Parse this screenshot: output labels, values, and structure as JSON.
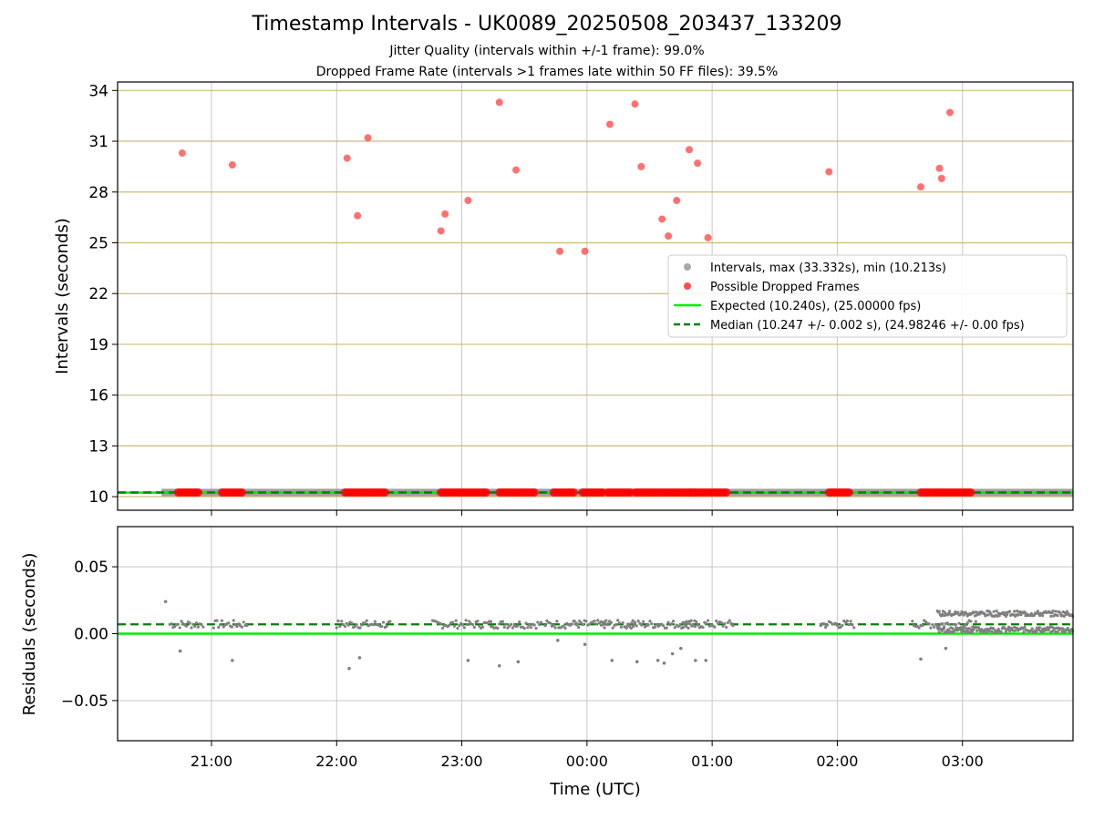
{
  "chart_data": [
    {
      "type": "scatter",
      "title": "Timestamp Intervals - UK0089_20250508_203437_133209",
      "subtitle_lines": [
        "Jitter Quality (intervals within +/-1 frame): 99.0%",
        "Dropped Frame Rate (intervals >1 frames late within 50 FF files): 39.5%"
      ],
      "xlabel": "",
      "ylabel": "Intervals (seconds)",
      "xlim": [
        "20:15",
        "03:53"
      ],
      "ylim": [
        9.2,
        34.5
      ],
      "yticks": [
        10,
        13,
        16,
        19,
        22,
        25,
        28,
        31,
        34
      ],
      "xticks": [
        "21:00",
        "22:00",
        "23:00",
        "00:00",
        "01:00",
        "02:00",
        "03:00"
      ],
      "grid": true,
      "legend_position": "center-right",
      "series": [
        {
          "name": "Intervals, max (33.332s), min (10.213s)",
          "kind": "scatter",
          "color": "#a0a0a0",
          "x_range": [
            "20:36",
            "03:53"
          ],
          "y_approx": 10.25
        },
        {
          "name": "Possible Dropped Frames",
          "kind": "scatter",
          "color": "#ff0000",
          "points": [
            [
              "20:46",
              30.3
            ],
            [
              "21:10",
              29.6
            ],
            [
              "22:05",
              30.0
            ],
            [
              "22:10",
              26.6
            ],
            [
              "22:15",
              31.2
            ],
            [
              "22:50",
              25.7
            ],
            [
              "22:52",
              26.7
            ],
            [
              "23:03",
              27.5
            ],
            [
              "23:18",
              33.3
            ],
            [
              "23:26",
              29.3
            ],
            [
              "23:47",
              24.5
            ],
            [
              "23:59",
              24.5
            ],
            [
              "00:11",
              32.0
            ],
            [
              "00:23",
              33.2
            ],
            [
              "00:26",
              29.5
            ],
            [
              "00:36",
              26.4
            ],
            [
              "00:39",
              25.4
            ],
            [
              "00:43",
              27.5
            ],
            [
              "00:49",
              30.5
            ],
            [
              "00:53",
              29.7
            ],
            [
              "00:58",
              25.3
            ],
            [
              "01:56",
              29.2
            ],
            [
              "02:40",
              28.3
            ],
            [
              "02:49",
              29.4
            ],
            [
              "02:50",
              28.8
            ],
            [
              "02:54",
              32.7
            ]
          ],
          "clusters_at_10_25": [
            [
              "20:44",
              "20:54"
            ],
            [
              "21:05",
              "21:15"
            ],
            [
              "22:04",
              "22:24"
            ],
            [
              "22:50",
              "23:12"
            ],
            [
              "23:18",
              "23:36"
            ],
            [
              "23:44",
              "23:54"
            ],
            [
              "23:58",
              "00:08"
            ],
            [
              "00:10",
              "00:21"
            ],
            [
              "00:23",
              "00:50"
            ],
            [
              "00:50",
              "01:08"
            ],
            [
              "01:56",
              "02:06"
            ],
            [
              "02:40",
              "03:05"
            ]
          ]
        },
        {
          "name": "Expected (10.240s), (25.00000 fps)",
          "kind": "line",
          "color": "#00ee00",
          "y": 10.24
        },
        {
          "name": "Median (10.247 +/- 0.002 s), (24.98246 +/- 0.00 fps)",
          "kind": "dashed-line",
          "color": "#008000",
          "y": 10.247
        }
      ]
    },
    {
      "type": "scatter",
      "title": "",
      "xlabel": "Time (UTC)",
      "ylabel": "Residuals (seconds)",
      "ylim": [
        -0.08,
        0.08
      ],
      "yticks": [
        "−0.05",
        "0.00",
        "0.05"
      ],
      "ytick_values": [
        -0.05,
        0.0,
        0.05
      ],
      "xticks": [
        "21:00",
        "22:00",
        "23:00",
        "00:00",
        "01:00",
        "02:00",
        "03:00"
      ],
      "grid": true,
      "series": [
        {
          "name": "",
          "kind": "scatter",
          "color": "#808080",
          "outliers": [
            [
              "20:38",
              0.024
            ],
            [
              "20:45",
              -0.013
            ],
            [
              "21:10",
              -0.02
            ],
            [
              "22:06",
              -0.026
            ],
            [
              "22:11",
              -0.018
            ],
            [
              "23:03",
              -0.02
            ],
            [
              "23:18",
              -0.024
            ],
            [
              "23:27",
              -0.021
            ],
            [
              "23:46",
              -0.005
            ],
            [
              "23:59",
              -0.008
            ],
            [
              "00:12",
              -0.02
            ],
            [
              "00:24",
              -0.021
            ],
            [
              "00:34",
              -0.02
            ],
            [
              "00:37",
              -0.022
            ],
            [
              "00:41",
              -0.015
            ],
            [
              "00:45",
              -0.011
            ],
            [
              "00:52",
              -0.02
            ],
            [
              "00:57",
              -0.02
            ],
            [
              "02:40",
              -0.019
            ],
            [
              "02:52",
              -0.011
            ]
          ]
        },
        {
          "name": "",
          "kind": "line",
          "color": "#00ee00",
          "y": 0.0
        },
        {
          "name": "",
          "kind": "dashed-line",
          "color": "#008000",
          "y": 0.007
        }
      ]
    }
  ]
}
